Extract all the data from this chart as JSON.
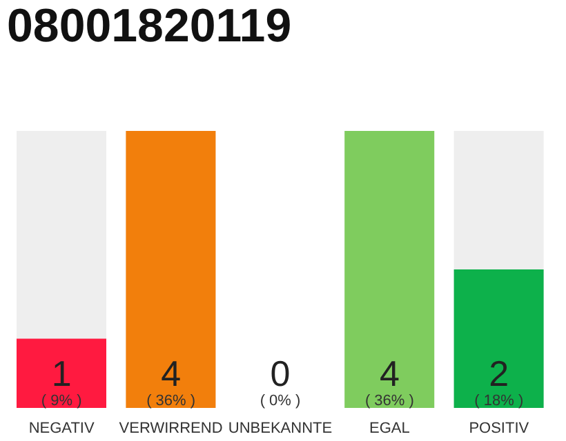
{
  "chart_data": {
    "type": "bar",
    "title": "08001820119",
    "categories": [
      "NEGATIV",
      "VERWIRREND",
      "UNBEKANNTE",
      "EGAL",
      "POSITIV"
    ],
    "values": [
      1,
      4,
      0,
      4,
      2
    ],
    "colors": [
      "#ff1a40",
      "#f27f0c",
      "#eeeeee",
      "#7fcc5e",
      "#0db14b"
    ],
    "data_labels": true,
    "annotations": [
      "( 9% )",
      "( 36% )",
      "( 0% )",
      "( 36% )",
      "( 18% )"
    ]
  }
}
